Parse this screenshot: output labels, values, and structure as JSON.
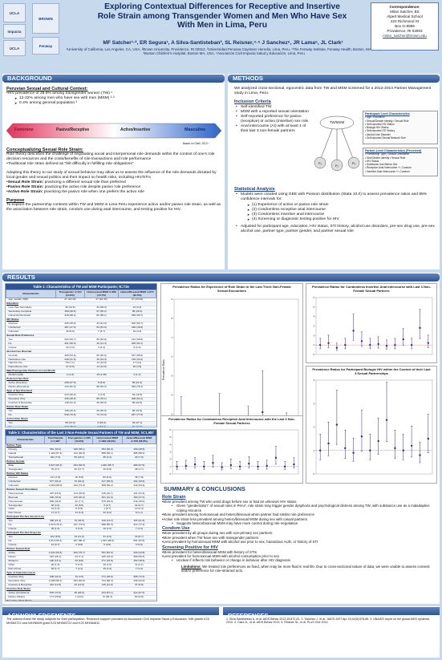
{
  "header": {
    "title": "Exploring Contextual Differences for Receptive and Insertive Role Strain among Transgender Women and Men Who Have Sex With Men in Lima, Peru",
    "authors": "MF Satcher¹·², ER Segura¹, A Silva-Santisteban³, SL Reisner,⁴·⁵ J Sanchez⁶, JR Lama⁶, JL Clark¹",
    "affiliations": "¹University of California, Los Angeles, CA, USA, ²Brown University, Providence, RI 02912, ³Universidad Peruana Cayetano Heredia, Lima, Peru, ⁴The Fenway Institute, Fenway Health, Boston, MA, USA, ⁵Boston Children's Hospital, Boston MA, USA, ⁶Asociación Civil Impacta Salud y Educación, Lima, Peru",
    "logos": {
      "left_top": "UCLA",
      "left_mid": "Impacta",
      "left_bottom": "UCLA",
      "right_top": "BROWN",
      "right_bottom": "Fenway"
    },
    "correspondence": [
      "Correspondence:",
      "Milan Satcher, BS",
      "Alpert Medical School",
      "222 Richmond St",
      "Box G-9999",
      "Providence, RI 02903",
      "milan_satcher@brown.edu"
    ]
  },
  "background": {
    "heading": "BACKGROUND",
    "peru_heading": "Peruvian Sexual and Cultural Context:",
    "peru_intro": "•HIV prevalence of 29.6% among transgender women (TW) ¹",
    "peru_points": [
      "12-22% among men who have sex with men (MSM) ²·³",
      "0.4% among general population ³"
    ],
    "spectrum": {
      "left": "Feminine",
      "mid_left": "Pasivo/Receptive",
      "mid_right": "Activo/Insertive",
      "right": "Masculine",
      "credit": "Based on Clark, 2013 ⁴"
    },
    "conc_heading": "Conceptualizing Sexual Role Strain:",
    "conc_text": "Role theory describes the challenge of negotiating social and interpersonal role demands within the context of one's role decision resources and the costs/benefits of role transactions and role performance",
    "conc_text2": "•Traditional role strain defined as \"felt difficulty in fulfilling role obligations\"",
    "adapt_text": "Adapting this theory to our study of sexual behavior may allow us to assess the influence of the role demands dictated by local gender and sexual politics and their impact on health risks, including HIV/STIs",
    "roles": [
      {
        "label": "•Sexual Role Strain:",
        "text": " practicing a different sexual role than preferred"
      },
      {
        "label": "•Pasivo Role Strain:",
        "text": " practicing the activo role despite pasivo role preference"
      },
      {
        "label": "•Activo Role Strain:",
        "text": " practicing the pasivo role when one prefers the activo role"
      }
    ],
    "purpose_heading": "Purpose",
    "purpose_text": "To explore the partnership contexts within TW and MSM in Lima Peru experience activo and/or pasivo role strain, as well as the association between role strain, condom use during anal intercourse, and testing positive for HIV."
  },
  "methods": {
    "heading": "METHODS",
    "intro": "We analyzed cross-sectional, egocentric data from TW and MSM screened for a 2012-2014 Partner Management study in Lima, Peru.",
    "inclusion_heading": "Inclusion Criteria",
    "inclusion": [
      "Self-identified TW",
      "MSM with a reported sexual orientation",
      "Self-reported preference for pasivo (receptive) or activo (insertive) sex role",
      "Anal intercourse (AI) with at least 1 of their last 3 non-female partners"
    ],
    "diagram": {
      "center": "TW/MSM",
      "nodes": [
        "P₁",
        "P₂",
        "P₃"
      ]
    },
    "participant_box": {
      "title": "Participant Level Characteristics",
      "items": [
        "• Age                    • Education",
        "• Sexual/Gender Identity   • Sexual Role",
        "• Self-reported HIV Status",
        "• Biologic HIV Status",
        "• Self-reported STI History",
        "• Alcohol Use Disorder",
        "• Self-reported Sexual Network Size"
      ]
    },
    "partner_box": {
      "title": "Partner-Level Characteristics (Perceived)",
      "items": [
        "• Partnership Type     • Sexual Orientation",
        "• Sex/Gender Identity   • Sexual Role",
        "• HIV Status",
        "• Substance Use Before Sex",
        "• Receptive Anal Intercourse +/- Condom",
        "• Insertive Anal Intercourse +/- Condom"
      ]
    },
    "stats_heading": "Statistical Analysis",
    "stats_intro": "Models were created using GEE with Poisson distribution (Stata 10.0) to assess prevalence ratios and 95% confidence intervals for:",
    "stats_items": [
      "(1) Experience of activo or pasivo role strain",
      "(2) Condomless receptive anal intercourse",
      "(3) Condomless insertive anal intercourse",
      "(4) Screening or diagnostic testing positive for HIV"
    ],
    "adjusted": "Adjusted for participant age, education, HIV status, STI history, alcohol use disorders, pre-sex drug use, pre-sex alcohol use, partner type, partner gender, and partner sexual role"
  },
  "results": {
    "heading": "RESULTS",
    "table1": {
      "title": "Table 1: Characteristics of TW and MSM Participants; N=716",
      "columns": [
        "Characteristic",
        "Transgender n=124 (14.9%)",
        "Homosexual MSM n=368 (44.7%)",
        "Hetero/Bisexual MSM n=274 (33.3%)"
      ],
      "rows": [
        [
          "Age median (IQR)",
          "27 (23-33)",
          "27 (22-32)",
          "27 (23-34)"
        ],
        [
          "Education",
          "",
          "",
          ""
        ],
        [
          "Less than Secondary",
          "39 (14.5)",
          "34 (38.3)",
          "34 (9.2)"
        ],
        [
          "Secondary Complete",
          "180 (28.6)",
          "97 (30.2)",
          "86 (28.4)"
        ],
        [
          "University/Technical",
          "418 (68.2)",
          "82 (58.1)",
          "268 (69.7)"
        ],
        [
          "HIV Status",
          "",
          "",
          ""
        ],
        [
          "Infected",
          "326 (45.6)",
          "43 (41.0)",
          "202 (52.7)"
        ],
        [
          "Uninfected",
          "387 (47.6)",
          "54 (51.6)",
          "168 (43.8)"
        ],
        [
          "Unknown",
          "49 (6.9)",
          "7 (6.7)",
          "19 (4.9)"
        ],
        [
          "Sexual Role Preference",
          "",
          "",
          ""
        ],
        [
          "Yes",
          "264 (36.7)",
          "65 (46.8)",
          "142 (36.8)"
        ],
        [
          "No",
          "361 (50.5)",
          "49 (31.3)",
          "208 (54.1)"
        ],
        [
          "Unsure",
          "22 (3.0)",
          "4 (4.2)",
          "6 (2.0)"
        ],
        [
          "Alcohol Use Disorder",
          "",
          "",
          ""
        ],
        [
          "No AUD",
          "305 (54.5)",
          "60 (36.5)",
          "237 (58.9)"
        ],
        [
          "Hazardous Use",
          "228 (31.8)",
          "35 (34.3)",
          "129 (31.8)"
        ],
        [
          "Harmful Use",
          "50 (7.1)",
          "14 (13.8)",
          "17 (4.4)"
        ],
        [
          "Dependence Use",
          "47 (6.6)",
          "14 (12.6)",
          "18 (4.6)"
        ],
        [
          "Male/Transgender Partners in Last Month",
          "",
          "",
          ""
        ],
        [
          "Median (IQR)",
          "2 (1-3)",
          "19 (2-39)",
          "2 (1-4)"
        ],
        [
          "Preferred Sex Role",
          "",
          "",
          ""
        ],
        [
          "Activo (Insertive)",
          "268 (37.5)",
          "8 (5.6)",
          "65 (21.6)"
        ],
        [
          "Pasivo (Receptive)",
          "444 (62.0)",
          "98 (94.3)",
          "303 (78.1)"
        ],
        [
          "Type of Sex Practiced",
          "",
          "",
          ""
        ],
        [
          "Insertive Only",
          "213 (30.0)",
          "3 (1.6)",
          "64 (16.5)"
        ],
        [
          "Receptive Only",
          "349 (48.6)",
          "85 (76.1)",
          "208 (53.1)"
        ],
        [
          "Insertive & Receptive",
          "149 (21.0)",
          "26 (25.0)",
          "86 (22.5)"
        ],
        [
          "Pasivo Role Strain",
          "",
          "",
          ""
        ],
        [
          "Yes",
          "138 (20.4)",
          "26 (25.0)",
          "86 (22.5)"
        ],
        [
          "No",
          "546 (79.6)",
          "73 (74.0)",
          "297 (77.5)"
        ],
        [
          "Activo Role Strain",
          "",
          "",
          ""
        ],
        [
          "Yes",
          "58 (21.0)",
          "3 (33.0)",
          "23 (27.1)"
        ],
        [
          "No",
          "222 (79.0)",
          "7 (67.0)",
          "62 (72.9)"
        ]
      ]
    },
    "table2": {
      "title": "Table 2: Characteristics of the Last 3 Non-Female Sexual Partners of TW and MSM; N=1,987",
      "columns": [
        "Characteristic",
        "Total Sample n=1,987",
        "Transgender n=266 (13.3%)",
        "Homosexual MSM n=992 (49.9%)",
        "Hetero/Bisexual MSM n=729 (36.6%)"
      ],
      "rows": [
        [
          "Partner Type",
          "",
          "",
          "",
          ""
        ],
        [
          "Primary",
          "561 (30.2)",
          "108 (39.1)",
          "254 (30.0)",
          "199 (28.5)"
        ],
        [
          "Casual",
          "1,104 (57.2)",
          "131 (49.9)",
          "588 (60.1)",
          "385 (58.2)"
        ],
        [
          "Transactional",
          "182 (7.6)",
          "50 (23.1)",
          "36 (3.4)",
          "43 (7.6)"
        ],
        [
          "Partner Gender",
          "",
          "",
          "",
          ""
        ],
        [
          "Male",
          "1,827 (96.3)",
          "264 (82.5)",
          "1,046 (98.7)",
          "489 (97.6)"
        ],
        [
          "Transgender",
          "70 (3.7)",
          "32 (17.7)",
          "10 (0.9)",
          "28 (1.7)"
        ],
        [
          "Partner HIV Status",
          "",
          "",
          "",
          ""
        ],
        [
          "Infected",
          "131 (7.8)",
          "18 (5.8)",
          "80 (9.6)",
          "38 (7.8)"
        ],
        [
          "Uninfected",
          "577 (34.2)",
          "79 (40.4)",
          "317 (35.6)",
          "191 (33.6)"
        ],
        [
          "Unknown",
          "1,069 (58.0)",
          "223 (74.0)",
          "598 (60.2)",
          "442 (53.9)"
        ],
        [
          "Partner Sexual Orientation",
          "",
          "",
          "",
          ""
        ],
        [
          "Heterosexual",
          "297 (15.9)",
          "114 (36.8)",
          "115 (10.7)",
          "121 (21.9)"
        ],
        [
          "Bisexual",
          "630 (33.9)",
          "125 (40.0)",
          "301 (31.0)",
          "180 (37.0)"
        ],
        [
          "Homosexual",
          "830 (44.6)",
          "22 (7.1)",
          "575 (49.9)",
          "242 (45.0)"
        ],
        [
          "Transgender",
          "48 (2.6)",
          "32 (8.5)",
          "9 (0.7)",
          "34 (0.7)"
        ],
        [
          "Other",
          "31 (1.6)",
          "8 (2.5)",
          "7 (0.7)",
          "13 (2.4)"
        ],
        [
          "Don't Know",
          "71 (3.7)",
          "14 (4.4)",
          "42 (4.0)",
          "8 (1.1)"
        ],
        [
          "Participant Pre-Sex Alcohol Use",
          "",
          "",
          "",
          ""
        ],
        [
          "Yes",
          "398 (21.4)",
          "79 (36.5)",
          "140 (14.2)",
          "115 (21.5)"
        ],
        [
          "No",
          "1,515 (78.1)",
          "237 (73.5)",
          "858 (85.3)",
          "414 (77.2)"
        ],
        [
          "Unsure",
          "26 (1.4)",
          "3 (1.6)",
          "10 (1.0)",
          "7 (1.3)"
        ],
        [
          "Participant Pre-Sex Drug Use",
          "",
          "",
          "",
          ""
        ],
        [
          "Yes",
          "104 (5.5)",
          "34 (11.9)",
          "31 (2.6)",
          "33 (6.7)"
        ],
        [
          "No",
          "1,813 (95.4)",
          "267 (88.4)",
          "1,022 (98.0)",
          "501 (93.5)"
        ],
        [
          "Unsure",
          "12 (0.7)",
          "2 (0.6)",
          "5 (0.5)",
          "3 (0.6)"
        ],
        [
          "Partner Sexual Role",
          "",
          "",
          "",
          ""
        ],
        [
          "Activo",
          "1,024 (50.4)",
          "206 (79.7)",
          "551 (81.6)",
          "330 (44.8)"
        ],
        [
          "Pasivo",
          "497 (26.1)",
          "23 (7.1)",
          "166 (16.0)",
          "268 (50.6)"
        ],
        [
          "Moderno",
          "290 (15.1)",
          "29 (8.8)",
          "271 (15.8)",
          "100 (18.6)"
        ],
        [
          "Other",
          "26 (1.3)",
          "5 (1.5)",
          "10 (1.0)",
          "11 (2.1)"
        ],
        [
          "Don't Know",
          "33 (1.7)",
          "7 (2.1)",
          "19 (1.9)",
          "7 (1.3)"
        ],
        [
          "Type of Anal Intercourse",
          "",
          "",
          "",
          ""
        ],
        [
          "Insertive Only",
          "638 (32.2)",
          "10 (3.5)",
          "271 (28.8)",
          "368 (72.4)"
        ],
        [
          "Receptive Only",
          "1,086 (58.1)",
          "253 (81.8)",
          "724 (68.4)",
          "139 (22.0)"
        ],
        [
          "Insertive & Receptive",
          "242 (12.5)",
          "43 (13.5)",
          "125 (11.9)",
          "47 (8.8)"
        ],
        [
          "Insertive Role Strain",
          "",
          "",
          "",
          ""
        ],
        [
          "Activo (Consistent)",
          "878 (70.2)",
          "48 (66.6)",
          "224 (87.1)",
          "414 (97.4)"
        ],
        [
          "Pasivo (Strain)",
          "177 (20.8)",
          "7 (10.2)",
          "72 (26.3)",
          "53 (9.8)"
        ],
        [
          "Receptive Role Strain",
          "",
          "",
          "",
          ""
        ],
        [
          "Activo (Strain)",
          "95 (7.3)",
          "12 (4.4)",
          "36 (4.6)",
          "117 (70.0)"
        ],
        [
          "Pasivo (Consistent)",
          "1,207 (92.7)",
          "264 (95.6)",
          "809 (95.4)",
          "99 (29.0)"
        ]
      ]
    },
    "chart1": {
      "title": "Prevalence Ratios for Experience of Role Strain in the Last Three Non-Female Sexual Encounters",
      "ylabel": "Prevalence Ratio"
    },
    "chart2": {
      "title": "Prevalence Ratios for Condomless Insertive Anal Intercourse with Last 3 Non-Female Sexual Partners"
    },
    "chart3": {
      "title": "Prevalence Ratios for Condomless Receptive Anal Intercourse with the Last 3 Non-Female Sexual Partners"
    },
    "chart4": {
      "title": "Prevalence Ratios for Participant Biologic HIV within the Context of their Last 3 Sexual Partnerships"
    }
  },
  "chart_data": [
    {
      "type": "scatter",
      "title": "Prevalence Ratios for Experience of Role Strain in the Last Three Non-Female Sexual Encounters",
      "ylabel": "Prevalence Ratio",
      "ylim": [
        0,
        9
      ],
      "y": [
        1.0,
        2.3,
        1.1,
        0.9,
        1.3,
        1.0,
        0.7,
        1.2,
        1.6,
        2.4,
        1.0,
        1.5,
        1.1,
        1.0,
        1.7,
        2.0,
        1.0,
        1.2,
        3.1,
        1.1,
        0.8,
        1.4,
        1.0,
        1.8,
        1.2,
        1.0
      ]
    },
    {
      "type": "scatter",
      "title": "Prevalence Ratios for Condomless Insertive Anal Intercourse with Last 3 Non-Female Sexual Partners",
      "ylim": [
        0,
        6
      ],
      "y": [
        1.0,
        1.2,
        0.7,
        1.0,
        2.5,
        1.4,
        1.0,
        1.1,
        0.9,
        1.0,
        1.6,
        1.0,
        2.8,
        1.2
      ]
    },
    {
      "type": "scatter",
      "title": "Prevalence Ratios for Condomless Receptive Anal Intercourse with the Last 3 Non-Female Sexual Partners",
      "ylim": [
        0,
        6
      ],
      "y": [
        1.0,
        1.1,
        1.3,
        1.0,
        1.5,
        0.9,
        1.2,
        1.0,
        1.4,
        1.0,
        1.1,
        2.2,
        1.0,
        1.3
      ]
    },
    {
      "type": "scatter",
      "title": "Prevalence Ratios for Participant Biologic HIV within the Context of their Last 3 Sexual Partnerships",
      "ylim": [
        0,
        4
      ],
      "y": [
        1.0,
        1.3,
        2.1,
        1.1,
        0.9,
        1.6,
        1.0,
        1.4,
        2.3,
        1.1,
        1.0,
        1.2,
        0.8,
        1.5
      ]
    }
  ],
  "summary": {
    "heading": "SUMMARY & CONCLUSIONS",
    "role_heading": "Role Strain",
    "role_points": [
      "•More prevalent among TW who used drugs before sex or had an unknown HIV status",
      "•More prevalent among homosexual and hetero/bisexual when partner had similar role preference",
      "•Active role strain less prevalent among hetero/bisexual MSM during sex with casual partners"
    ],
    "role_sub1": "Given \"gender/ation\" of sexual roles in Peru⁵, role strain may trigger gender dysphoria and psychological distress among TW, with substance use as a maladaptive coping resource",
    "role_sub2": "Suggests hetero/bisexual MSM may have more control during role negotiation",
    "condom_heading": "Condom Use",
    "condom_points": [
      "•More prevalent by all groups during sex with non-primary sex partners",
      "•More prevalent when TW have sex with transgender partners",
      "•Less prevalent by homosexual MSM with alcohol use prior to sex, hazardous AUD, or history of STI"
    ],
    "hiv_heading": "Screening Positive for HIV",
    "hiv_points": [
      "•More prevalent for hetero/bisexual MSM with history of STIs",
      "•Less prevalent for homosexual MSM with alcohol consumption prior to sex"
    ],
    "hiv_sub": "Unclear if reflects risk behavior or change in behavior after HIV diagnosis",
    "limitations_label": "Limitations:",
    "limitations_text": " We treated role preferences as fixed, when may be more fluid in real life. Due to cross-sectional nature of data, we were unable to assess consent and/or preference for role-strained acts."
  },
  "acknowledgements": {
    "heading": "ACKNOWLEDGEMENTS",
    "text": "The authors thank the study subjects for their participation. Research support provided by Asociación Civil Impacta Salud y Educación, NIH grants K23 MH084722 and NIH/NIMH grant K23 MH084722 and K23 MH084611."
  },
  "references": {
    "heading": "REFERENCES",
    "text": "1. Silva-Santisteban A, et al. AIDS Behav 2012;16:872-81. 2. Sanchez J, et al. JAIDS 2007 Apr 15;44(5):578-85. 3. UNAIDS report on the global AIDS epidemic 2010. 4. Clark JL, et al. AIDS Behav 2013. 5. Reisner SL, et al. PLoS One 2014."
  },
  "colors": {
    "section_bar": "#2e5592",
    "title": "#102a5c",
    "background": "#c7d9ec",
    "marker": "#2a2aa8"
  }
}
